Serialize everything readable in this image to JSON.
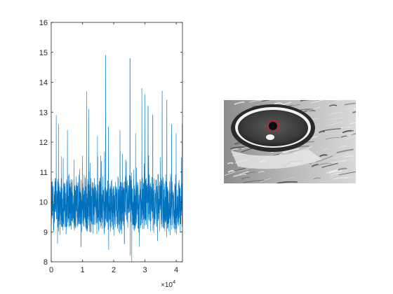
{
  "figure": {
    "background": "#ffffff",
    "panels": [
      "line-plot",
      "eye-image"
    ]
  },
  "chart_data": {
    "type": "line",
    "series_color": "#0072BD",
    "xlim": [
      0,
      42000
    ],
    "ylim": [
      8,
      16
    ],
    "x_ticks": [
      0,
      1,
      2,
      3,
      4
    ],
    "x_exponent_label": {
      "base": "×10",
      "exp": "4"
    },
    "y_ticks": [
      8,
      9,
      10,
      11,
      12,
      13,
      14,
      15,
      16
    ],
    "grid": false,
    "legend": "none",
    "baseline_mean": 9.9,
    "noise_band": [
      9.0,
      11.2
    ],
    "n_points": 42000,
    "spikes": [
      {
        "x": 1600,
        "y": 12.9
      },
      {
        "x": 2400,
        "y": 12.6
      },
      {
        "x": 5200,
        "y": 12.4
      },
      {
        "x": 11300,
        "y": 13.7
      },
      {
        "x": 12000,
        "y": 13.1
      },
      {
        "x": 14800,
        "y": 12.2
      },
      {
        "x": 17400,
        "y": 14.9
      },
      {
        "x": 18300,
        "y": 12.5
      },
      {
        "x": 22000,
        "y": 12.4
      },
      {
        "x": 25200,
        "y": 14.8
      },
      {
        "x": 27000,
        "y": 12.3
      },
      {
        "x": 29000,
        "y": 13.8
      },
      {
        "x": 30000,
        "y": 13.6
      },
      {
        "x": 31000,
        "y": 13.2
      },
      {
        "x": 32500,
        "y": 12.9
      },
      {
        "x": 35500,
        "y": 13.7
      },
      {
        "x": 37000,
        "y": 13.4
      },
      {
        "x": 38500,
        "y": 12.6
      },
      {
        "x": 40000,
        "y": 12.3
      },
      {
        "x": 41900,
        "y": 12.6
      }
    ],
    "dips": [
      {
        "x": 2000,
        "y": 8.6
      },
      {
        "x": 9500,
        "y": 8.5
      },
      {
        "x": 18400,
        "y": 8.4
      },
      {
        "x": 23400,
        "y": 8.6
      },
      {
        "x": 25300,
        "y": 8.2
      },
      {
        "x": 25800,
        "y": 8.0
      },
      {
        "x": 28200,
        "y": 8.5
      },
      {
        "x": 34000,
        "y": 8.7
      }
    ]
  },
  "image_panel": {
    "subject": "grayscale close-up of an animal eye",
    "pupil_marker_color": "#e0101e"
  }
}
